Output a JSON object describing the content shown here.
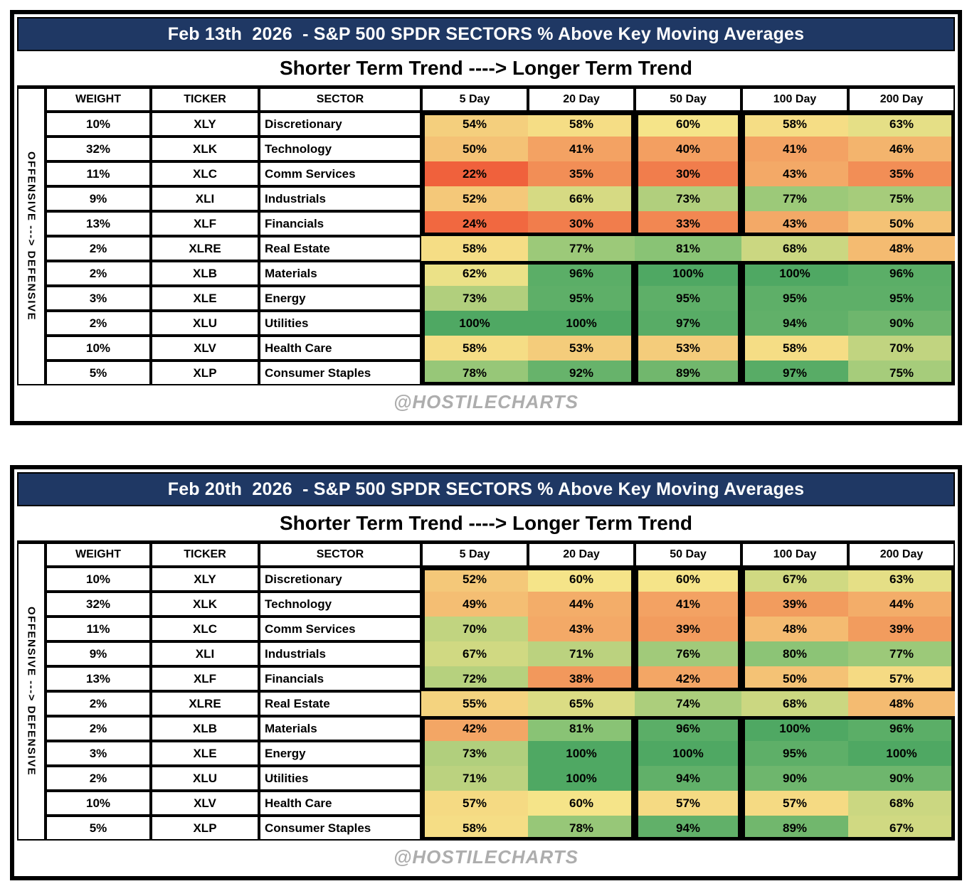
{
  "subtitle": "Shorter Term Trend ----> Longer Term Trend",
  "side_label": "OFFENSIVE ---> DEFENSIVE",
  "watermark": "@HOSTILECHARTS",
  "left_columns": [
    "WEIGHT",
    "TICKER",
    "SECTOR"
  ],
  "colors": {
    "title_bg": "#1F3864",
    "title_text": "#FFFFFF",
    "border": "#000000",
    "watermark": "#ADADAD"
  },
  "color_scale": {
    "stops": [
      {
        "value": 20,
        "color": "#F05A38"
      },
      {
        "value": 60,
        "color": "#F5E489"
      },
      {
        "value": 80,
        "color": "#8CC476"
      },
      {
        "value": 100,
        "color": "#4FA863"
      }
    ]
  },
  "chart_data": [
    {
      "type": "heatmap",
      "title": "Feb 13th  2026  - S&P 500 SPDR SECTORS % Above Key Moving Averages",
      "columns": [
        "5 Day",
        "20 Day",
        "50 Day",
        "100 Day",
        "200 Day"
      ],
      "value_unit": "%",
      "rows": [
        {
          "weight": "10%",
          "ticker": "XLY",
          "sector": "Discretionary",
          "values": [
            54,
            58,
            60,
            58,
            63
          ]
        },
        {
          "weight": "32%",
          "ticker": "XLK",
          "sector": "Technology",
          "values": [
            50,
            41,
            40,
            41,
            46
          ]
        },
        {
          "weight": "11%",
          "ticker": "XLC",
          "sector": "Comm Services",
          "values": [
            22,
            35,
            30,
            43,
            35
          ]
        },
        {
          "weight": "9%",
          "ticker": "XLI",
          "sector": "Industrials",
          "values": [
            52,
            66,
            73,
            77,
            75
          ]
        },
        {
          "weight": "13%",
          "ticker": "XLF",
          "sector": "Financials",
          "values": [
            24,
            30,
            33,
            43,
            50
          ]
        },
        {
          "weight": "2%",
          "ticker": "XLRE",
          "sector": "Real Estate",
          "values": [
            58,
            77,
            81,
            68,
            48
          ]
        },
        {
          "weight": "2%",
          "ticker": "XLB",
          "sector": "Materials",
          "values": [
            62,
            96,
            100,
            100,
            96
          ]
        },
        {
          "weight": "3%",
          "ticker": "XLE",
          "sector": "Energy",
          "values": [
            73,
            95,
            95,
            95,
            95
          ]
        },
        {
          "weight": "2%",
          "ticker": "XLU",
          "sector": "Utilities",
          "values": [
            100,
            100,
            97,
            94,
            90
          ]
        },
        {
          "weight": "10%",
          "ticker": "XLV",
          "sector": "Health Care",
          "values": [
            58,
            53,
            53,
            58,
            70
          ]
        },
        {
          "weight": "5%",
          "ticker": "XLP",
          "sector": "Consumer Staples",
          "values": [
            78,
            92,
            89,
            97,
            75
          ]
        }
      ]
    },
    {
      "type": "heatmap",
      "title": "Feb 20th  2026  - S&P 500 SPDR SECTORS % Above Key Moving Averages",
      "columns": [
        "5 Day",
        "20 Day",
        "50 Day",
        "100 Day",
        "200 Day"
      ],
      "value_unit": "%",
      "rows": [
        {
          "weight": "10%",
          "ticker": "XLY",
          "sector": "Discretionary",
          "values": [
            52,
            60,
            60,
            67,
            63
          ]
        },
        {
          "weight": "32%",
          "ticker": "XLK",
          "sector": "Technology",
          "values": [
            49,
            44,
            41,
            39,
            44
          ]
        },
        {
          "weight": "11%",
          "ticker": "XLC",
          "sector": "Comm Services",
          "values": [
            70,
            43,
            39,
            48,
            39
          ]
        },
        {
          "weight": "9%",
          "ticker": "XLI",
          "sector": "Industrials",
          "values": [
            67,
            71,
            76,
            80,
            77
          ]
        },
        {
          "weight": "13%",
          "ticker": "XLF",
          "sector": "Financials",
          "values": [
            72,
            38,
            42,
            50,
            57
          ]
        },
        {
          "weight": "2%",
          "ticker": "XLRE",
          "sector": "Real Estate",
          "values": [
            55,
            65,
            74,
            68,
            48
          ]
        },
        {
          "weight": "2%",
          "ticker": "XLB",
          "sector": "Materials",
          "values": [
            42,
            81,
            96,
            100,
            96
          ]
        },
        {
          "weight": "3%",
          "ticker": "XLE",
          "sector": "Energy",
          "values": [
            73,
            100,
            100,
            95,
            100
          ]
        },
        {
          "weight": "2%",
          "ticker": "XLU",
          "sector": "Utilities",
          "values": [
            71,
            100,
            94,
            90,
            90
          ]
        },
        {
          "weight": "10%",
          "ticker": "XLV",
          "sector": "Health Care",
          "values": [
            57,
            60,
            57,
            57,
            68
          ]
        },
        {
          "weight": "5%",
          "ticker": "XLP",
          "sector": "Consumer Staples",
          "values": [
            58,
            78,
            94,
            89,
            67
          ]
        }
      ]
    }
  ]
}
